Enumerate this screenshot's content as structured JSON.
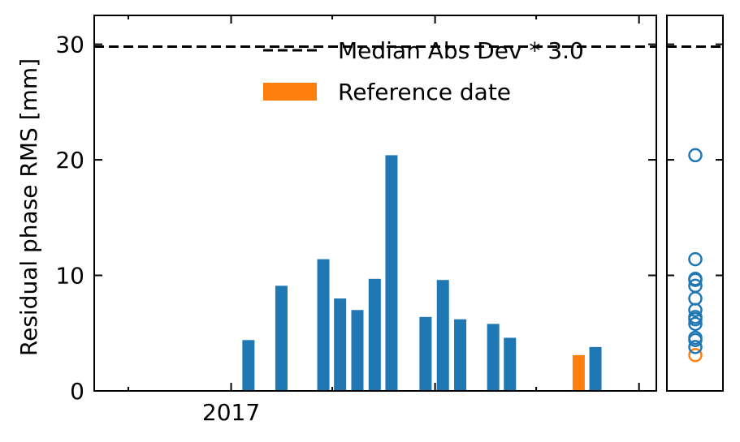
{
  "chart_data": {
    "type": "bar",
    "ylabel": "Residual phase RMS [mm]",
    "ylim": [
      0,
      32.5
    ],
    "yticks": [
      0,
      10,
      20,
      30
    ],
    "xlim": [
      "2016-05-01",
      "2019-02-01"
    ],
    "xtick_labels": [
      {
        "date": "2017-01-01",
        "label": "2017"
      }
    ],
    "threshold": {
      "value": 29.8,
      "label": "Median Abs Dev * 3.0",
      "style": "dashed",
      "color": "#000000"
    },
    "reference_label": "Reference date",
    "series": [
      {
        "values": [
          {
            "date": "2017-02-01",
            "value": 4.4,
            "reference": false
          },
          {
            "date": "2017-04-01",
            "value": 9.1,
            "reference": false
          },
          {
            "date": "2017-06-15",
            "value": 11.4,
            "reference": false
          },
          {
            "date": "2017-07-15",
            "value": 8.0,
            "reference": false
          },
          {
            "date": "2017-08-15",
            "value": 7.0,
            "reference": false
          },
          {
            "date": "2017-09-15",
            "value": 9.7,
            "reference": false
          },
          {
            "date": "2017-10-15",
            "value": 20.4,
            "reference": false
          },
          {
            "date": "2017-12-15",
            "value": 6.4,
            "reference": false
          },
          {
            "date": "2018-01-15",
            "value": 9.6,
            "reference": false
          },
          {
            "date": "2018-02-15",
            "value": 6.2,
            "reference": false
          },
          {
            "date": "2018-04-15",
            "value": 5.8,
            "reference": false
          },
          {
            "date": "2018-05-15",
            "value": 4.6,
            "reference": false
          },
          {
            "date": "2018-09-15",
            "value": 3.1,
            "reference": true
          },
          {
            "date": "2018-10-15",
            "value": 3.8,
            "reference": false
          }
        ]
      }
    ],
    "colors": {
      "bar": "#1f77b4",
      "reference": "#ff7f0e",
      "threshold": "#000000"
    },
    "legend_position": "upper-right",
    "grid": false
  }
}
